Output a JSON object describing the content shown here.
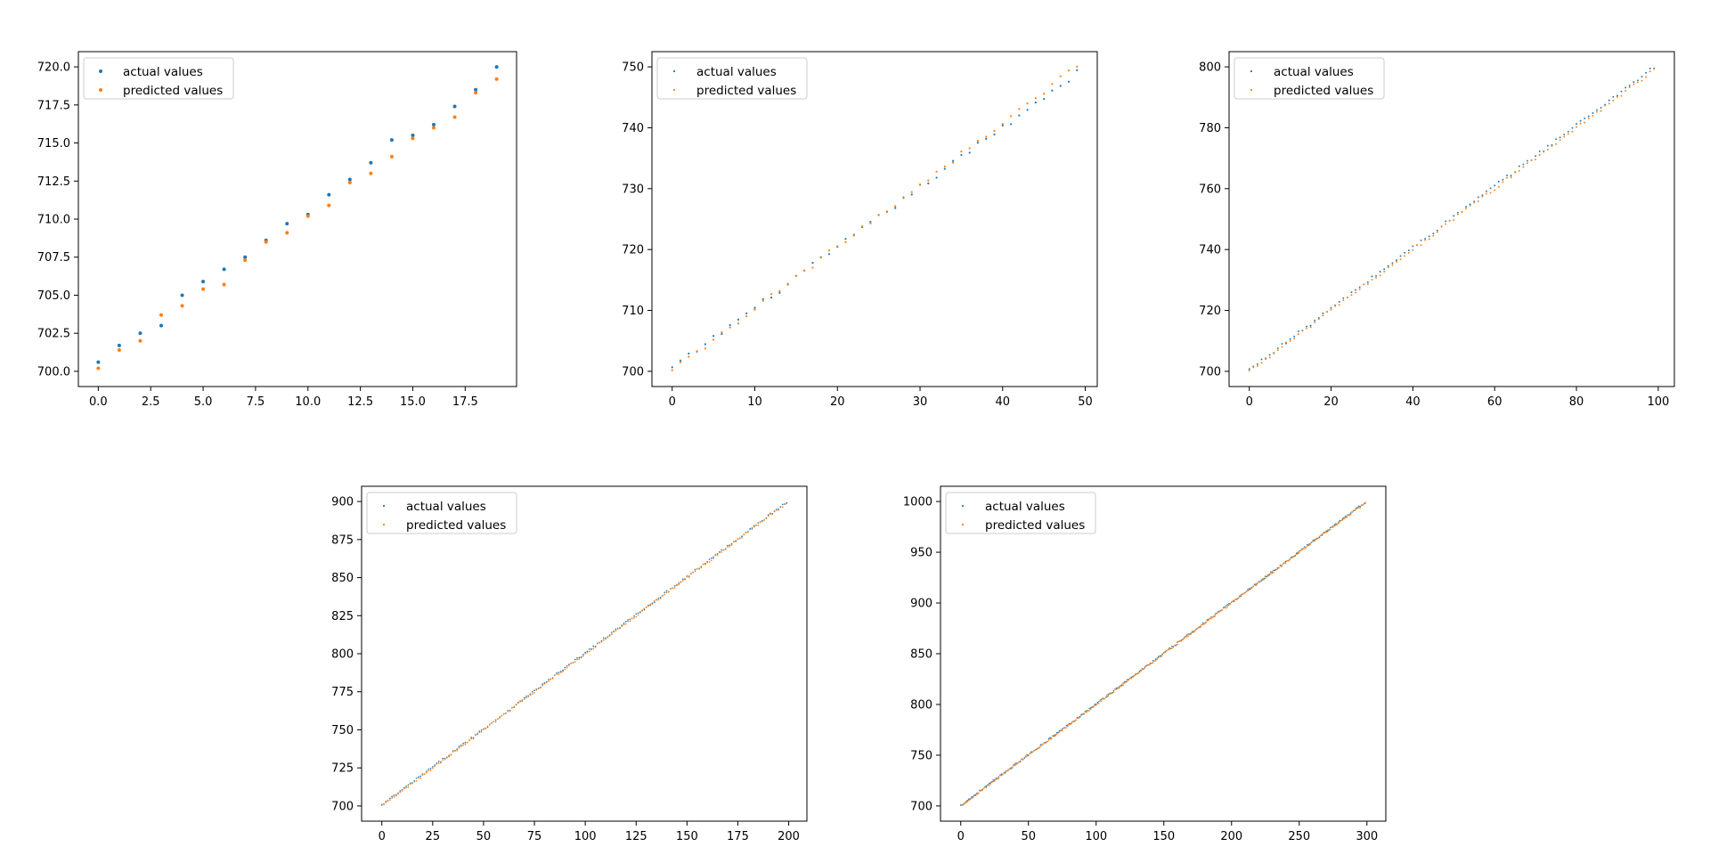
{
  "colors": {
    "actual": "#1f77b4",
    "predicted": "#ff7f0e"
  },
  "chart_data": [
    {
      "type": "scatter",
      "legend": {
        "placement": "upper-left",
        "entries": [
          "actual values",
          "predicted values"
        ]
      },
      "xlim": [
        -0.95,
        19.95
      ],
      "ylim": [
        699.0,
        721.0
      ],
      "xticks": [
        0,
        2.5,
        5,
        7.5,
        10,
        12.5,
        15,
        17.5
      ],
      "xtick_labels": [
        "0.0",
        "2.5",
        "5.0",
        "7.5",
        "10.0",
        "12.5",
        "15.0",
        "17.5"
      ],
      "yticks": [
        700,
        702.5,
        705,
        707.5,
        710,
        712.5,
        715,
        717.5,
        720
      ],
      "ytick_labels": [
        "700.0",
        "702.5",
        "705.0",
        "707.5",
        "710.0",
        "712.5",
        "715.0",
        "717.5",
        "720.0"
      ],
      "series": [
        {
          "name": "actual values",
          "n_points": 20,
          "values": [
            700.6,
            701.7,
            702.5,
            703.0,
            705.0,
            705.9,
            706.7,
            707.5,
            708.6,
            709.7,
            710.3,
            711.6,
            712.6,
            713.7,
            715.2,
            715.5,
            716.2,
            717.4,
            718.5,
            720.0
          ]
        },
        {
          "name": "predicted values",
          "n_points": 20,
          "values": [
            700.2,
            701.4,
            702.0,
            703.7,
            704.3,
            705.4,
            705.7,
            707.3,
            708.5,
            709.1,
            710.2,
            710.9,
            712.4,
            713.0,
            714.1,
            715.3,
            716.0,
            716.7,
            718.3,
            719.2
          ]
        }
      ]
    },
    {
      "type": "scatter",
      "legend": {
        "placement": "upper-left",
        "entries": [
          "actual values",
          "predicted values"
        ]
      },
      "xlim": [
        -2.45,
        51.45
      ],
      "ylim": [
        697.5,
        752.5
      ],
      "xticks": [
        0,
        10,
        20,
        30,
        40,
        50
      ],
      "xtick_labels": [
        "0",
        "10",
        "20",
        "30",
        "40",
        "50"
      ],
      "yticks": [
        700,
        710,
        720,
        730,
        740,
        750
      ],
      "ytick_labels": [
        "700",
        "710",
        "720",
        "730",
        "740",
        "750"
      ],
      "series": [
        {
          "name": "actual values",
          "n_points": 50,
          "start": 700.5,
          "end": 749.0,
          "noise": 0.5
        },
        {
          "name": "predicted values",
          "n_points": 50,
          "start": 700.0,
          "end": 750.0,
          "noise": 0.5
        }
      ]
    },
    {
      "type": "scatter",
      "legend": {
        "placement": "upper-left",
        "entries": [
          "actual values",
          "predicted values"
        ]
      },
      "xlim": [
        -4.95,
        103.95
      ],
      "ylim": [
        695.0,
        805.0
      ],
      "xticks": [
        0,
        20,
        40,
        60,
        80,
        100
      ],
      "xtick_labels": [
        "0",
        "20",
        "40",
        "60",
        "80",
        "100"
      ],
      "yticks": [
        700,
        720,
        740,
        760,
        780,
        800
      ],
      "ytick_labels": [
        "700",
        "720",
        "740",
        "760",
        "780",
        "800"
      ],
      "series": [
        {
          "name": "actual values",
          "n_points": 100,
          "start": 700.5,
          "end": 800.0,
          "noise": 0.6
        },
        {
          "name": "predicted values",
          "n_points": 100,
          "start": 700.0,
          "end": 799.0,
          "noise": 0.6
        }
      ]
    },
    {
      "type": "scatter",
      "legend": {
        "placement": "upper-left",
        "entries": [
          "actual values",
          "predicted values"
        ]
      },
      "xlim": [
        -9.95,
        208.95
      ],
      "ylim": [
        690.0,
        910.0
      ],
      "xticks": [
        0,
        25,
        50,
        75,
        100,
        125,
        150,
        175,
        200
      ],
      "xtick_labels": [
        "0",
        "25",
        "50",
        "75",
        "100",
        "125",
        "150",
        "175",
        "200"
      ],
      "yticks": [
        700,
        725,
        750,
        775,
        800,
        825,
        850,
        875,
        900
      ],
      "ytick_labels": [
        "700",
        "725",
        "750",
        "775",
        "800",
        "825",
        "850",
        "875",
        "900"
      ],
      "series": [
        {
          "name": "actual values",
          "n_points": 200,
          "start": 700.5,
          "end": 899.5,
          "noise": 0.8
        },
        {
          "name": "predicted values",
          "n_points": 200,
          "start": 700.0,
          "end": 899.0,
          "noise": 0.8
        }
      ]
    },
    {
      "type": "scatter",
      "legend": {
        "placement": "upper-left",
        "entries": [
          "actual values",
          "predicted values"
        ]
      },
      "xlim": [
        -14.95,
        313.95
      ],
      "ylim": [
        685.0,
        1015.0
      ],
      "xticks": [
        0,
        50,
        100,
        150,
        200,
        250,
        300
      ],
      "xtick_labels": [
        "0",
        "50",
        "100",
        "150",
        "200",
        "250",
        "300"
      ],
      "yticks": [
        700,
        750,
        800,
        850,
        900,
        950,
        1000
      ],
      "ytick_labels": [
        "700",
        "750",
        "800",
        "850",
        "900",
        "950",
        "1000"
      ],
      "series": [
        {
          "name": "actual values",
          "n_points": 300,
          "start": 700.5,
          "end": 999.5,
          "noise": 1.0
        },
        {
          "name": "predicted values",
          "n_points": 300,
          "start": 700.0,
          "end": 999.0,
          "noise": 1.0
        }
      ]
    }
  ]
}
